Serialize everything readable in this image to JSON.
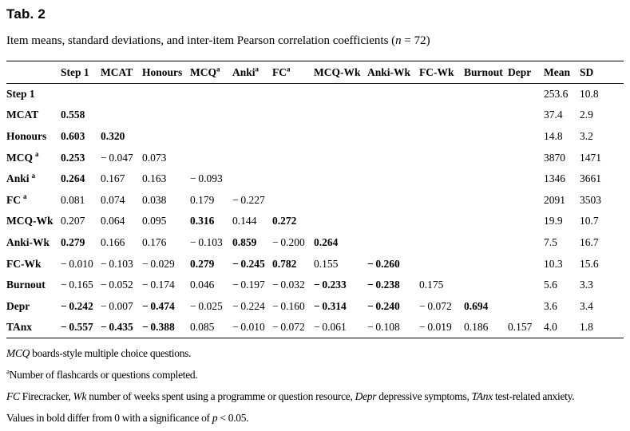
{
  "title": "Tab. 2",
  "caption": {
    "segments": [
      {
        "t": "Item means, standard deviations, and inter-item Pearson correlation coefficients (",
        "style": "normal"
      },
      {
        "t": "n",
        "style": "italic"
      },
      {
        "t": " = 72)",
        "style": "normal"
      }
    ]
  },
  "table": {
    "columns": [
      {
        "label": "Step 1",
        "sup": ""
      },
      {
        "label": "MCAT",
        "sup": ""
      },
      {
        "label": "Honours",
        "sup": ""
      },
      {
        "label": "MCQ",
        "sup": "a"
      },
      {
        "label": "Anki",
        "sup": "a"
      },
      {
        "label": "FC",
        "sup": "a"
      },
      {
        "label": "MCQ-Wk",
        "sup": ""
      },
      {
        "label": "Anki-Wk",
        "sup": ""
      },
      {
        "label": "FC-Wk",
        "sup": ""
      },
      {
        "label": "Burnout",
        "sup": ""
      },
      {
        "label": "Depr",
        "sup": ""
      },
      {
        "label": "Mean",
        "sup": ""
      },
      {
        "label": "SD",
        "sup": ""
      }
    ],
    "rows": [
      {
        "label": "Step 1",
        "sup": "",
        "cells": [
          null,
          null,
          null,
          null,
          null,
          null,
          null,
          null,
          null,
          null,
          null,
          {
            "v": "253.6"
          },
          {
            "v": "10.8"
          }
        ]
      },
      {
        "label": "MCAT",
        "sup": "",
        "cells": [
          {
            "v": "0.558",
            "b": true
          },
          null,
          null,
          null,
          null,
          null,
          null,
          null,
          null,
          null,
          null,
          {
            "v": "37.4"
          },
          {
            "v": "2.9"
          }
        ]
      },
      {
        "label": "Honours",
        "sup": "",
        "cells": [
          {
            "v": "0.603",
            "b": true
          },
          {
            "v": "0.320",
            "b": true
          },
          null,
          null,
          null,
          null,
          null,
          null,
          null,
          null,
          null,
          {
            "v": "14.8"
          },
          {
            "v": "3.2"
          }
        ]
      },
      {
        "label": "MCQ",
        "sup": "a",
        "cells": [
          {
            "v": "0.253",
            "b": true
          },
          {
            "v": "−0.047"
          },
          {
            "v": "0.073"
          },
          null,
          null,
          null,
          null,
          null,
          null,
          null,
          null,
          {
            "v": "3870"
          },
          {
            "v": "1471"
          }
        ]
      },
      {
        "label": "Anki",
        "sup": "a",
        "cells": [
          {
            "v": "0.264",
            "b": true
          },
          {
            "v": "0.167"
          },
          {
            "v": "0.163"
          },
          {
            "v": "−0.093"
          },
          null,
          null,
          null,
          null,
          null,
          null,
          null,
          {
            "v": "1346"
          },
          {
            "v": "3661"
          }
        ]
      },
      {
        "label": "FC",
        "sup": "a",
        "cells": [
          {
            "v": "0.081"
          },
          {
            "v": "0.074"
          },
          {
            "v": "0.038"
          },
          {
            "v": "0.179"
          },
          {
            "v": "−0.227"
          },
          null,
          null,
          null,
          null,
          null,
          null,
          {
            "v": "2091"
          },
          {
            "v": "3503"
          }
        ]
      },
      {
        "label": "MCQ-Wk",
        "sup": "",
        "cells": [
          {
            "v": "0.207"
          },
          {
            "v": "0.064"
          },
          {
            "v": "0.095"
          },
          {
            "v": "0.316",
            "b": true
          },
          {
            "v": "0.144"
          },
          {
            "v": "0.272",
            "b": true
          },
          null,
          null,
          null,
          null,
          null,
          {
            "v": "19.9"
          },
          {
            "v": "10.7"
          }
        ]
      },
      {
        "label": "Anki-Wk",
        "sup": "",
        "cells": [
          {
            "v": "0.279",
            "b": true
          },
          {
            "v": "0.166"
          },
          {
            "v": "0.176"
          },
          {
            "v": "−0.103"
          },
          {
            "v": "0.859",
            "b": true
          },
          {
            "v": "−0.200"
          },
          {
            "v": "0.264",
            "b": true
          },
          null,
          null,
          null,
          null,
          {
            "v": "7.5"
          },
          {
            "v": "16.7"
          }
        ]
      },
      {
        "label": "FC-Wk",
        "sup": "",
        "cells": [
          {
            "v": "−0.010"
          },
          {
            "v": "−0.103"
          },
          {
            "v": "−0.029"
          },
          {
            "v": "0.279",
            "b": true
          },
          {
            "v": "−0.245",
            "b": true
          },
          {
            "v": "0.782",
            "b": true
          },
          {
            "v": "0.155"
          },
          {
            "v": "−0.260",
            "b": true
          },
          null,
          null,
          null,
          {
            "v": "10.3"
          },
          {
            "v": "15.6"
          }
        ]
      },
      {
        "label": "Burnout",
        "sup": "",
        "cells": [
          {
            "v": "−0.165"
          },
          {
            "v": "−0.052"
          },
          {
            "v": "−0.174"
          },
          {
            "v": "0.046"
          },
          {
            "v": "−0.197"
          },
          {
            "v": "−0.032"
          },
          {
            "v": "−0.233",
            "b": true
          },
          {
            "v": "−0.238",
            "b": true
          },
          {
            "v": "0.175"
          },
          null,
          null,
          {
            "v": "5.6"
          },
          {
            "v": "3.3"
          }
        ]
      },
      {
        "label": "Depr",
        "sup": "",
        "cells": [
          {
            "v": "−0.242",
            "b": true
          },
          {
            "v": "−0.007"
          },
          {
            "v": "−0.474",
            "b": true
          },
          {
            "v": "−0.025"
          },
          {
            "v": "−0.224"
          },
          {
            "v": "−0.160"
          },
          {
            "v": "−0.314",
            "b": true
          },
          {
            "v": "−0.240",
            "b": true
          },
          {
            "v": "−0.072"
          },
          {
            "v": "0.694",
            "b": true
          },
          null,
          {
            "v": "3.6"
          },
          {
            "v": "3.4"
          }
        ]
      },
      {
        "label": "TAnx",
        "sup": "",
        "cells": [
          {
            "v": "−0.557",
            "b": true
          },
          {
            "v": "−0.435",
            "b": true
          },
          {
            "v": "−0.388",
            "b": true
          },
          {
            "v": "0.085"
          },
          {
            "v": "−0.010"
          },
          {
            "v": "−0.072"
          },
          {
            "v": "−0.061"
          },
          {
            "v": "−0.108"
          },
          {
            "v": "−0.019"
          },
          {
            "v": "0.186"
          },
          {
            "v": "0.157"
          },
          {
            "v": "4.0"
          },
          {
            "v": "1.8"
          }
        ]
      }
    ]
  },
  "notes": [
    {
      "segments": [
        {
          "t": "MCQ",
          "style": "italic"
        },
        {
          "t": " boards-style multiple choice questions.",
          "style": "normal"
        }
      ]
    },
    {
      "segments": [
        {
          "t": "a",
          "style": "sup"
        },
        {
          "t": "Number of flashcards or questions completed.",
          "style": "normal"
        }
      ]
    },
    {
      "segments": [
        {
          "t": "FC",
          "style": "italic"
        },
        {
          "t": " Firecracker, ",
          "style": "normal"
        },
        {
          "t": "Wk",
          "style": "italic"
        },
        {
          "t": " number of weeks spent using a programme or question resource, ",
          "style": "normal"
        },
        {
          "t": "Depr",
          "style": "italic"
        },
        {
          "t": " depressive symptoms, ",
          "style": "normal"
        },
        {
          "t": "TAnx",
          "style": "italic"
        },
        {
          "t": " test-related anxiety.",
          "style": "normal"
        }
      ]
    },
    {
      "segments": [
        {
          "t": "Values in bold differ from 0 with a significance of ",
          "style": "normal"
        },
        {
          "t": "p",
          "style": "italic"
        },
        {
          "t": " < 0.05.",
          "style": "normal"
        }
      ]
    }
  ]
}
